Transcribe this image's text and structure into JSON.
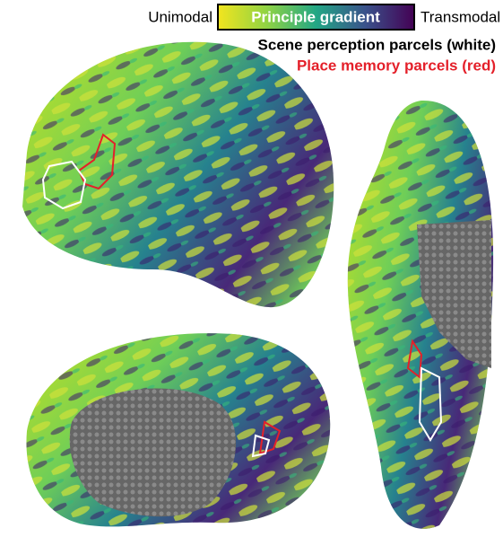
{
  "legend": {
    "left_label": "Unimodal",
    "title": "Principle gradient",
    "right_label": "Transmodal"
  },
  "annotations": [
    "Scene perception parcels (white)",
    "Place memory parcels (red)"
  ]
}
